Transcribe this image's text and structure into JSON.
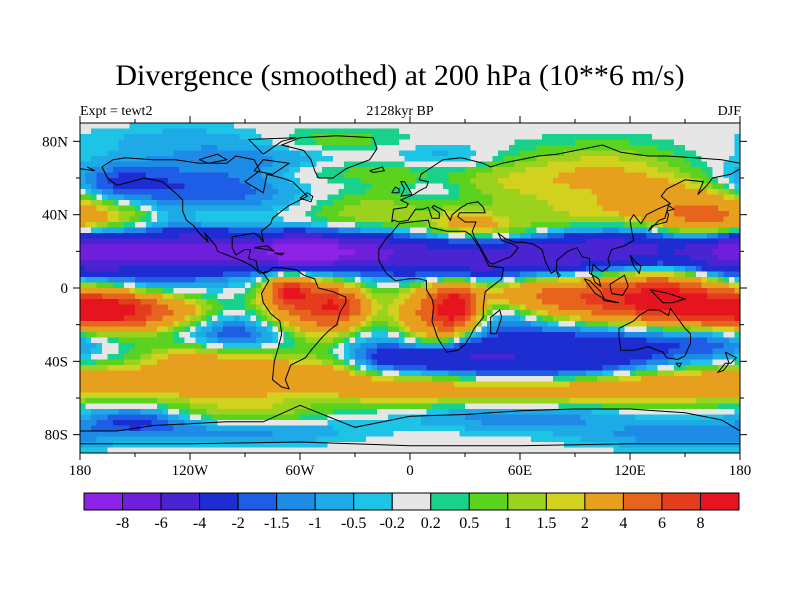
{
  "chart_data": {
    "type": "heatmap",
    "title": "Divergence (smoothed) at 200 hPa (10**6 m/s)",
    "left_string": "Expt = tewt2",
    "center_string": "2128kyr BP",
    "right_string": "DJF",
    "x_range": [
      -180,
      180
    ],
    "y_range": [
      -90,
      90
    ],
    "x_ticks": [
      {
        "value": -180,
        "label": "180"
      },
      {
        "value": -120,
        "label": "120W"
      },
      {
        "value": -60,
        "label": "60W"
      },
      {
        "value": 0,
        "label": "0"
      },
      {
        "value": 60,
        "label": "60E"
      },
      {
        "value": 120,
        "label": "120E"
      },
      {
        "value": 180,
        "label": "180"
      }
    ],
    "y_ticks": [
      {
        "value": 80,
        "label": "80N"
      },
      {
        "value": 40,
        "label": "40N"
      },
      {
        "value": 0,
        "label": "0"
      },
      {
        "value": -40,
        "label": "40S"
      },
      {
        "value": -80,
        "label": "80S"
      }
    ],
    "contour_levels": [
      -8,
      -6,
      -4,
      -2,
      -1.5,
      -1,
      -0.5,
      -0.2,
      0.2,
      0.5,
      1,
      1.5,
      2,
      4,
      6,
      8
    ],
    "level_labels": [
      "-8",
      "-6",
      "-4",
      "-2",
      "-1.5",
      "-1",
      "-0.5",
      "-0.2",
      "0.2",
      "0.5",
      "1",
      "1.5",
      "2",
      "4",
      "6",
      "8"
    ],
    "colors": [
      "#8c23e6",
      "#6d1fdc",
      "#4a23d2",
      "#1e2dd2",
      "#1e5ee6",
      "#1e8ce6",
      "#1eaae6",
      "#1ec4e6",
      "#e6e6e6",
      "#18d28c",
      "#5ad21e",
      "#9ad21e",
      "#d2d21e",
      "#e6a01e",
      "#e6641e",
      "#e63c1e",
      "#e6141e"
    ],
    "land_line_color": "#000000"
  }
}
